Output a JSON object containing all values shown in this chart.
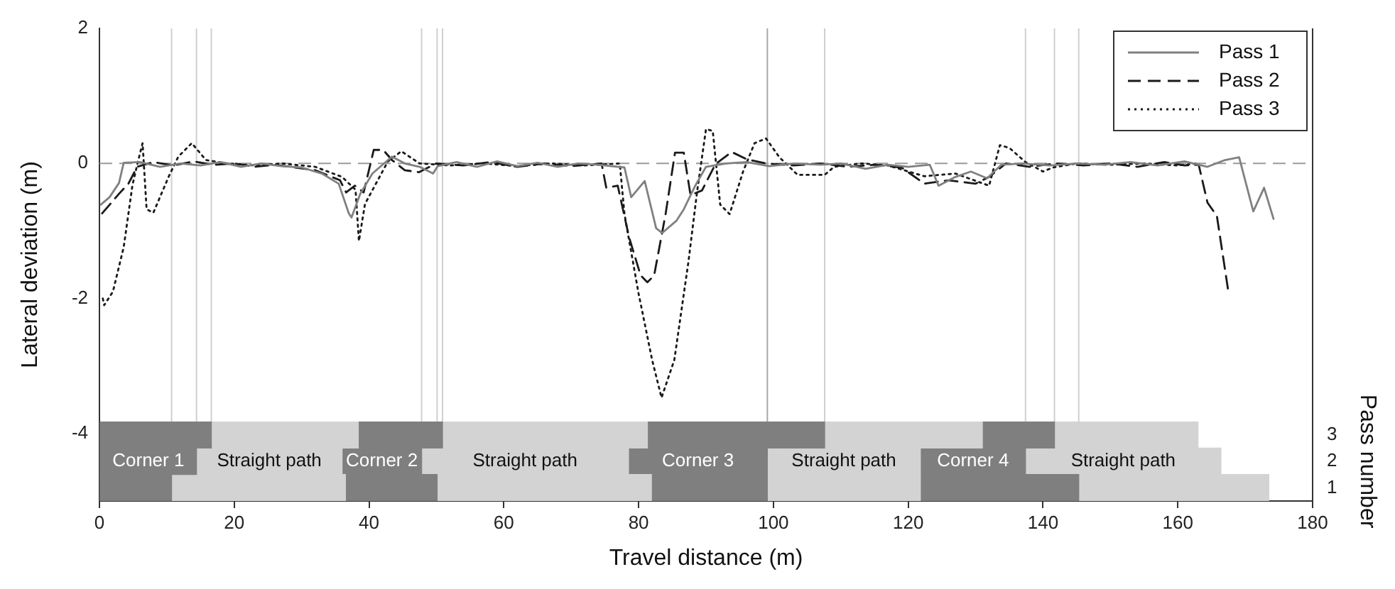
{
  "chart_data": [
    {
      "type": "line",
      "ylabel": "Lateral deviation (m)",
      "xlim": [
        0,
        180
      ],
      "xticks": [
        0,
        20,
        40,
        60,
        80,
        100,
        120,
        140,
        160,
        180
      ],
      "ylim": [
        -5,
        2
      ],
      "yticks": [
        -4,
        -2,
        0,
        2
      ],
      "tick_labels": "y",
      "legend": "top right",
      "ref_lines": [
        {
          "axis": "y",
          "value": 0,
          "color": "#9a9a9a",
          "line_style": "dashed"
        },
        {
          "axis": "x",
          "value": 10.7,
          "color": "#cfcfcf"
        },
        {
          "axis": "x",
          "value": 14.4,
          "color": "#cfcfcf"
        },
        {
          "axis": "x",
          "value": 16.6,
          "color": "#cfcfcf"
        },
        {
          "axis": "x",
          "value": 47.8,
          "color": "#cfcfcf"
        },
        {
          "axis": "x",
          "value": 50.1,
          "color": "#cfcfcf"
        },
        {
          "axis": "x",
          "value": 50.9,
          "color": "#cfcfcf"
        },
        {
          "axis": "x",
          "value": 99.1,
          "color": "#a8a8a8"
        },
        {
          "axis": "x",
          "value": 107.6,
          "color": "#cfcfcf"
        },
        {
          "axis": "x",
          "value": 137.4,
          "color": "#cfcfcf"
        },
        {
          "axis": "x",
          "value": 141.7,
          "color": "#cfcfcf"
        },
        {
          "axis": "x",
          "value": 145.3,
          "color": "#cfcfcf"
        }
      ],
      "series": [
        {
          "name": "Pass 1",
          "color": "#808080",
          "line_style": "solid",
          "x": [
            0.2,
            1.5,
            2.9,
            3.6,
            6,
            9,
            12,
            15,
            18,
            21,
            24,
            27,
            30,
            33,
            35.5,
            37,
            37.4,
            38.7,
            40.5,
            43.4,
            45.3,
            47.5,
            49.5,
            50.2,
            53,
            56,
            59,
            62,
            65,
            68,
            71,
            74,
            77.9,
            78.9,
            80.9,
            82.6,
            83.5,
            85.6,
            86.7,
            88.4,
            90,
            93,
            96,
            99.4,
            103,
            107,
            110,
            113.7,
            117,
            120,
            123.2,
            124.5,
            127,
            129.3,
            131.7,
            133.8,
            137,
            141,
            145,
            149,
            153,
            157,
            161,
            164.4,
            167,
            169.1,
            171.2,
            172.8,
            174.2
          ],
          "values": [
            -0.61,
            -0.5,
            -0.29,
            0.01,
            0.02,
            -0.05,
            0,
            -0.03,
            0.02,
            -0.05,
            0,
            -0.04,
            -0.06,
            -0.15,
            -0.3,
            -0.74,
            -0.8,
            -0.45,
            -0.15,
            0.1,
            0,
            -0.05,
            -0.15,
            -0.04,
            0.02,
            -0.05,
            0.03,
            -0.04,
            0.01,
            -0.05,
            0,
            -0.02,
            -0.06,
            -0.5,
            -0.26,
            -0.96,
            -1.03,
            -0.85,
            -0.68,
            -0.33,
            -0.05,
            0,
            0.02,
            -0.04,
            0,
            -0.02,
            0,
            -0.08,
            -0.02,
            -0.05,
            -0.02,
            -0.33,
            -0.2,
            -0.12,
            -0.22,
            -0.02,
            0,
            -0.03,
            0,
            -0.02,
            0.02,
            -0.03,
            0.03,
            -0.05,
            0.05,
            0.09,
            -0.71,
            -0.36,
            -0.82
          ]
        },
        {
          "name": "Pass 2",
          "color": "#1a1a1a",
          "line_style": "dashed",
          "x": [
            0.4,
            2.9,
            4.3,
            5.6,
            8,
            11,
            14,
            17,
            20,
            23,
            26,
            29,
            32,
            35.7,
            36.6,
            37.9,
            39.2,
            40.7,
            42.1,
            43.4,
            45.3,
            47.4,
            50,
            54,
            58,
            62,
            66,
            70,
            74.5,
            75.2,
            76.9,
            78.6,
            80.3,
            81.3,
            82.3,
            84,
            85.4,
            86.7,
            87.7,
            89.4,
            91.4,
            93.8,
            96.1,
            98.9,
            103,
            107,
            111,
            115,
            119,
            122.4,
            126,
            130,
            132,
            134.5,
            138,
            142,
            146,
            150,
            154,
            158,
            161,
            163.1,
            164.4,
            165.8,
            167.5
          ],
          "values": [
            -0.74,
            -0.45,
            -0.3,
            -0.05,
            0.02,
            -0.03,
            0.03,
            -0.02,
            0,
            -0.05,
            -0.02,
            -0.06,
            -0.1,
            -0.25,
            -0.43,
            -0.33,
            -0.43,
            0.2,
            0.2,
            0.05,
            -0.1,
            -0.13,
            0,
            -0.03,
            0.02,
            -0.05,
            0,
            -0.04,
            0,
            -0.36,
            -0.33,
            -1.1,
            -1.66,
            -1.76,
            -1.66,
            -0.75,
            0.16,
            0.16,
            -0.47,
            -0.4,
            -0.01,
            0.17,
            0.06,
            0,
            -0.03,
            0,
            -0.05,
            -0.02,
            -0.06,
            -0.3,
            -0.25,
            -0.3,
            -0.2,
            0,
            -0.05,
            0,
            -0.03,
            0,
            -0.05,
            0.02,
            -0.03,
            -0.02,
            -0.58,
            -0.78,
            -1.9
          ]
        },
        {
          "name": "Pass 3",
          "color": "#1a1a1a",
          "line_style": "dotted",
          "x": [
            0.5,
            0.7,
            2,
            3.6,
            4.9,
            5.7,
            6.4,
            7,
            8,
            10.3,
            11.7,
            13.7,
            15.8,
            19,
            23,
            27,
            32,
            36,
            38,
            38.5,
            39.4,
            41.4,
            42.8,
            44.8,
            47.5,
            52,
            57,
            62,
            67,
            72,
            77.2,
            77.9,
            80,
            82,
            83.4,
            85.3,
            87.4,
            88.7,
            90,
            91,
            92.1,
            93.5,
            95.5,
            97.2,
            98.9,
            100.9,
            103.6,
            107.6,
            109,
            113,
            117,
            122.4,
            127,
            132,
            133.6,
            135,
            137.4,
            140,
            141.5,
            145,
            150,
            155,
            160,
            163
          ],
          "values": [
            -2,
            -2.1,
            -1.9,
            -1.24,
            -0.32,
            0.02,
            0.3,
            -0.68,
            -0.73,
            -0.19,
            0.1,
            0.3,
            0.05,
            0,
            -0.03,
            0,
            -0.05,
            -0.2,
            -0.39,
            -1.15,
            -0.6,
            -0.23,
            0.03,
            0.18,
            0,
            -0.03,
            0,
            -0.04,
            0,
            -0.03,
            0,
            -0.75,
            -1.93,
            -2.91,
            -3.47,
            -2.91,
            -1.45,
            -0.4,
            0.51,
            0.48,
            -0.61,
            -0.75,
            -0.12,
            0.3,
            0.37,
            0.09,
            -0.17,
            -0.17,
            -0.05,
            0,
            -0.03,
            -0.19,
            -0.15,
            -0.33,
            0.27,
            0.23,
            0.02,
            -0.12,
            -0.06,
            0,
            -0.02,
            0,
            -0.03,
            0
          ]
        }
      ]
    },
    {
      "type": "bar",
      "orientation": "horizontal",
      "stacked": true,
      "xlabel": "Travel distance (m)",
      "ylabel": "Pass number",
      "xlim": [
        0,
        180
      ],
      "xticks": [
        0,
        20,
        40,
        60,
        80,
        100,
        120,
        140,
        160,
        180
      ],
      "categories": [
        "3",
        "2",
        "1"
      ],
      "series": [
        {
          "name": "Corner 1",
          "color": "#7f7f7f",
          "values": [
            16.6,
            14.4,
            10.7
          ]
        },
        {
          "name": "Straight path",
          "color": "#d3d3d3",
          "values": [
            21.8,
            21.6,
            25.8
          ]
        },
        {
          "name": "Corner 2",
          "color": "#7f7f7f",
          "values": [
            12.5,
            11.8,
            13.6
          ]
        },
        {
          "name": "Straight path",
          "color": "#d3d3d3",
          "values": [
            30.4,
            30.7,
            31.8
          ]
        },
        {
          "name": "Corner 3",
          "color": "#7f7f7f",
          "values": [
            26.3,
            20.6,
            17.2
          ]
        },
        {
          "name": "Straight path",
          "color": "#d3d3d3",
          "values": [
            23.4,
            22.7,
            22.7
          ]
        },
        {
          "name": "Corner 4",
          "color": "#7f7f7f",
          "values": [
            10.7,
            15.6,
            23.5
          ]
        },
        {
          "name": "Straight path",
          "color": "#d3d3d3",
          "values": [
            21.3,
            29.0,
            28.2
          ]
        }
      ]
    }
  ]
}
